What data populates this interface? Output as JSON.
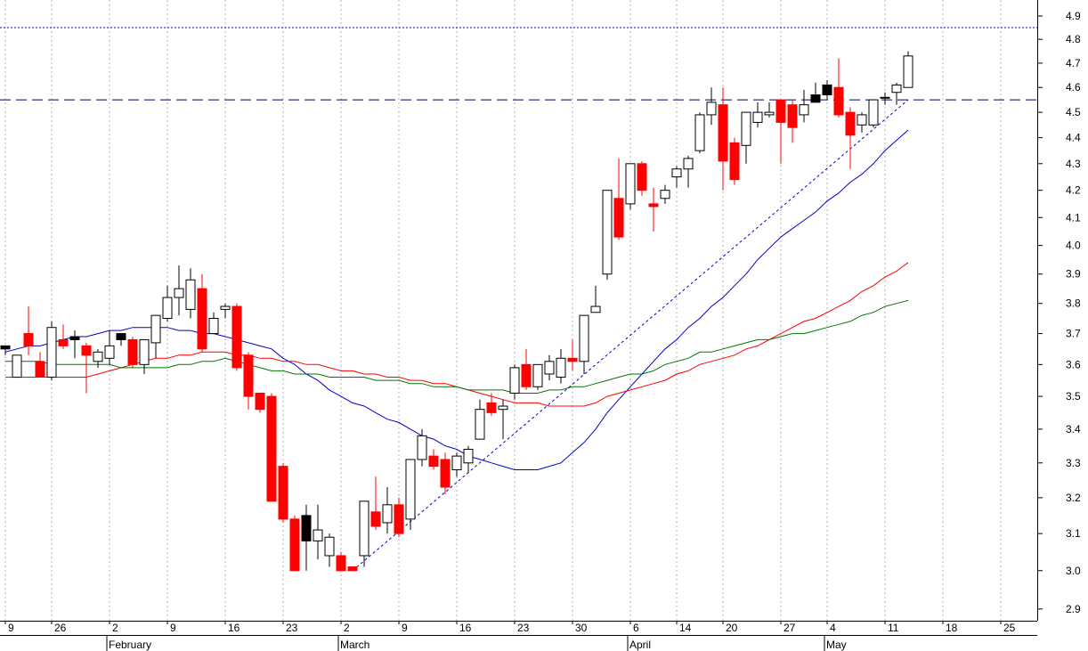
{
  "chart_data": {
    "type": "candlestick",
    "categories": [
      "9",
      null,
      null,
      null,
      "26",
      null,
      null,
      null,
      null,
      "2",
      null,
      null,
      null,
      null,
      "9",
      null,
      null,
      null,
      null,
      "16",
      null,
      null,
      null,
      null,
      "23",
      null,
      null,
      null,
      null,
      "2",
      null,
      null,
      null,
      null,
      "9",
      null,
      null,
      null,
      null,
      "16",
      null,
      null,
      null,
      null,
      "23",
      null,
      null,
      null,
      null,
      "30",
      null,
      null,
      null,
      null,
      "6",
      null,
      null,
      null,
      "14",
      null,
      null,
      null,
      "20",
      null,
      null,
      null,
      null,
      "27",
      null,
      null,
      null,
      "4",
      null,
      null,
      null,
      null,
      "11",
      null,
      null,
      null,
      null,
      "18",
      null,
      null,
      null,
      null,
      "25"
    ],
    "month_labels": [
      {
        "index": 9,
        "label": "February"
      },
      {
        "index": 29,
        "label": "March"
      },
      {
        "index": 54,
        "label": "April"
      },
      {
        "index": 71,
        "label": "May"
      }
    ],
    "open": [
      3.66,
      3.56,
      3.7,
      3.61,
      3.56,
      3.68,
      3.69,
      3.66,
      3.61,
      3.62,
      3.7,
      3.68,
      3.6,
      3.67,
      3.75,
      3.82,
      3.78,
      3.85,
      3.7,
      3.78,
      3.79,
      3.63,
      3.51,
      3.5,
      3.29,
      3.14,
      3.15,
      3.08,
      3.04,
      3.04,
      3.01,
      3.04,
      3.16,
      3.13,
      3.18,
      3.14,
      3.31,
      3.32,
      3.31,
      3.28,
      3.3,
      3.37,
      3.48,
      3.46,
      3.51,
      3.6,
      3.53,
      3.57,
      3.56,
      3.62,
      3.61,
      3.77,
      3.9,
      4.17,
      4.15,
      4.3,
      4.15,
      4.17,
      4.25,
      4.28,
      4.35,
      4.49,
      4.53,
      4.38,
      4.37,
      4.46,
      4.49,
      4.55,
      4.53,
      4.49,
      4.57,
      4.61,
      4.6,
      4.5,
      4.45,
      4.45,
      4.56,
      4.58,
      4.6,
      null,
      null,
      null,
      null,
      null,
      null,
      null,
      null
    ],
    "high": [
      3.66,
      3.63,
      3.79,
      3.64,
      3.74,
      3.73,
      3.71,
      3.67,
      3.65,
      3.71,
      3.7,
      3.69,
      3.68,
      3.76,
      3.86,
      3.93,
      3.92,
      3.9,
      3.77,
      3.8,
      3.8,
      3.64,
      3.51,
      3.51,
      3.3,
      3.15,
      3.18,
      3.18,
      3.1,
      3.05,
      3.01,
      3.19,
      3.26,
      3.23,
      3.2,
      3.31,
      3.4,
      3.34,
      3.33,
      3.33,
      3.35,
      3.49,
      3.51,
      3.49,
      3.6,
      3.65,
      3.6,
      3.63,
      3.65,
      3.68,
      3.76,
      3.86,
      4.2,
      4.32,
      4.3,
      4.31,
      4.21,
      4.22,
      4.29,
      4.33,
      4.5,
      4.6,
      4.6,
      4.4,
      4.5,
      4.54,
      4.54,
      4.55,
      4.55,
      4.59,
      4.62,
      4.63,
      4.72,
      4.52,
      4.5,
      4.55,
      4.58,
      4.62,
      4.75,
      null,
      null,
      null,
      null,
      null,
      null,
      null,
      null
    ],
    "low": [
      3.63,
      3.56,
      3.63,
      3.56,
      3.55,
      3.65,
      3.62,
      3.51,
      3.59,
      3.6,
      3.66,
      3.59,
      3.57,
      3.62,
      3.74,
      3.76,
      3.75,
      3.64,
      3.7,
      3.75,
      3.58,
      3.46,
      3.45,
      3.19,
      3.13,
      3.0,
      3.0,
      3.03,
      3.01,
      3.0,
      3.0,
      3.01,
      3.11,
      3.1,
      3.09,
      3.11,
      3.29,
      3.28,
      3.21,
      3.26,
      3.27,
      3.37,
      3.44,
      3.37,
      3.49,
      3.52,
      3.52,
      3.55,
      3.54,
      3.58,
      3.57,
      3.77,
      3.88,
      4.02,
      4.13,
      4.18,
      4.05,
      4.15,
      4.21,
      4.21,
      4.34,
      4.45,
      4.2,
      4.22,
      4.3,
      4.44,
      4.48,
      4.3,
      4.38,
      4.46,
      4.54,
      4.55,
      4.48,
      4.28,
      4.42,
      4.44,
      4.53,
      4.53,
      4.6,
      null,
      null,
      null,
      null,
      null,
      null,
      null,
      null
    ],
    "close": [
      3.65,
      3.63,
      3.66,
      3.56,
      3.72,
      3.66,
      3.68,
      3.63,
      3.64,
      3.66,
      3.68,
      3.6,
      3.68,
      3.76,
      3.82,
      3.85,
      3.88,
      3.65,
      3.75,
      3.79,
      3.59,
      3.5,
      3.46,
      3.19,
      3.14,
      3.0,
      3.08,
      3.11,
      3.09,
      3.0,
      3.0,
      3.19,
      3.12,
      3.18,
      3.1,
      3.31,
      3.38,
      3.29,
      3.23,
      3.32,
      3.34,
      3.46,
      3.45,
      3.47,
      3.59,
      3.53,
      3.6,
      3.61,
      3.62,
      3.61,
      3.76,
      3.79,
      4.2,
      4.03,
      4.3,
      4.2,
      4.14,
      4.2,
      4.28,
      4.32,
      4.49,
      4.54,
      4.31,
      4.24,
      4.5,
      4.5,
      4.5,
      4.46,
      4.44,
      4.53,
      4.54,
      4.57,
      4.49,
      4.41,
      4.49,
      4.55,
      4.56,
      4.61,
      4.73,
      null,
      null,
      null,
      null,
      null,
      null,
      null,
      null
    ],
    "candle_colors": [
      "#000000",
      "#ffffff",
      "#ff0000",
      "#ff0000",
      "#ffffff",
      "#ff0000",
      "#000000",
      "#ff0000",
      "#ffffff",
      "#ffffff",
      "#000000",
      "#ff0000",
      "#ffffff",
      "#ffffff",
      "#ffffff",
      "#ffffff",
      "#ffffff",
      "#ff0000",
      "#ffffff",
      "#ffffff",
      "#ff0000",
      "#ff0000",
      "#ff0000",
      "#ff0000",
      "#ff0000",
      "#ff0000",
      "#000000",
      "#ffffff",
      "#ffffff",
      "#ff0000",
      "#ff0000",
      "#ffffff",
      "#ff0000",
      "#ffffff",
      "#ff0000",
      "#ffffff",
      "#ffffff",
      "#ff0000",
      "#ff0000",
      "#ffffff",
      "#ffffff",
      "#ffffff",
      "#ff0000",
      "#ffffff",
      "#ffffff",
      "#ff0000",
      "#ffffff",
      "#ffffff",
      "#ffffff",
      "#ff0000",
      "#ffffff",
      "#ffffff",
      "#ffffff",
      "#ff0000",
      "#ffffff",
      "#ff0000",
      "#ff0000",
      "#ffffff",
      "#ffffff",
      "#ffffff",
      "#ffffff",
      "#ffffff",
      "#ff0000",
      "#ff0000",
      "#ffffff",
      "#ffffff",
      "#ffffff",
      "#ff0000",
      "#ff0000",
      "#ffffff",
      "#000000",
      "#000000",
      "#ff0000",
      "#ff0000",
      "#ffffff",
      "#ffffff",
      "#ffffff",
      "#ffffff",
      "#ffffff",
      null,
      null,
      null,
      null,
      null,
      null,
      null,
      null
    ],
    "lines": [
      {
        "color": "#0000cc",
        "values": [
          3.64,
          3.65,
          3.66,
          3.66,
          3.67,
          3.68,
          3.69,
          3.69,
          3.7,
          3.71,
          3.71,
          3.72,
          3.72,
          3.72,
          3.72,
          3.71,
          3.71,
          3.7,
          3.7,
          3.69,
          3.68,
          3.67,
          3.66,
          3.65,
          3.62,
          3.6,
          3.57,
          3.55,
          3.52,
          3.5,
          3.48,
          3.47,
          3.45,
          3.43,
          3.42,
          3.4,
          3.38,
          3.37,
          3.35,
          3.34,
          3.32,
          3.31,
          3.3,
          3.29,
          3.28,
          3.28,
          3.28,
          3.29,
          3.3,
          3.33,
          3.36,
          3.4,
          3.45,
          3.49,
          3.53,
          3.57,
          3.61,
          3.65,
          3.68,
          3.72,
          3.75,
          3.79,
          3.82,
          3.86,
          3.9,
          3.95,
          3.99,
          4.03,
          4.06,
          4.09,
          4.12,
          4.16,
          4.19,
          4.23,
          4.26,
          4.3,
          4.35,
          4.39,
          4.43,
          null,
          null,
          null,
          null,
          null,
          null,
          null,
          null
        ]
      },
      {
        "color": "#ff0000",
        "values": [
          3.56,
          3.56,
          3.56,
          3.56,
          3.56,
          3.56,
          3.56,
          3.56,
          3.57,
          3.58,
          3.59,
          3.6,
          3.61,
          3.62,
          3.62,
          3.63,
          3.63,
          3.64,
          3.64,
          3.64,
          3.63,
          3.63,
          3.62,
          3.62,
          3.61,
          3.61,
          3.6,
          3.6,
          3.59,
          3.58,
          3.58,
          3.57,
          3.57,
          3.56,
          3.56,
          3.55,
          3.55,
          3.54,
          3.54,
          3.53,
          3.52,
          3.51,
          3.5,
          3.49,
          3.48,
          3.48,
          3.48,
          3.47,
          3.47,
          3.47,
          3.47,
          3.48,
          3.5,
          3.51,
          3.52,
          3.53,
          3.54,
          3.55,
          3.57,
          3.58,
          3.6,
          3.61,
          3.62,
          3.63,
          3.65,
          3.66,
          3.68,
          3.7,
          3.72,
          3.74,
          3.75,
          3.77,
          3.79,
          3.81,
          3.84,
          3.86,
          3.89,
          3.91,
          3.94,
          null,
          null,
          null,
          null,
          null,
          null,
          null,
          null
        ]
      },
      {
        "color": "#007700",
        "values": [
          3.61,
          3.61,
          3.61,
          3.61,
          3.6,
          3.6,
          3.6,
          3.6,
          3.6,
          3.6,
          3.59,
          3.59,
          3.59,
          3.59,
          3.59,
          3.6,
          3.6,
          3.61,
          3.61,
          3.62,
          3.61,
          3.6,
          3.59,
          3.58,
          3.58,
          3.57,
          3.57,
          3.57,
          3.56,
          3.56,
          3.56,
          3.56,
          3.55,
          3.55,
          3.55,
          3.54,
          3.54,
          3.53,
          3.53,
          3.53,
          3.52,
          3.52,
          3.52,
          3.52,
          3.51,
          3.51,
          3.51,
          3.52,
          3.52,
          3.53,
          3.53,
          3.54,
          3.55,
          3.56,
          3.57,
          3.57,
          3.58,
          3.6,
          3.61,
          3.62,
          3.64,
          3.64,
          3.65,
          3.66,
          3.67,
          3.68,
          3.68,
          3.69,
          3.7,
          3.7,
          3.71,
          3.72,
          3.73,
          3.74,
          3.76,
          3.77,
          3.79,
          3.8,
          3.81,
          null,
          null,
          null,
          null,
          null,
          null,
          null,
          null
        ]
      }
    ],
    "hlines": [
      {
        "value": 4.85,
        "color": "#0000cc",
        "style": "dotted"
      },
      {
        "value": 4.55,
        "color": "#000066",
        "style": "dashed"
      }
    ],
    "trendline": {
      "x": [
        30,
        78
      ],
      "values": [
        3.0,
        4.55
      ],
      "color": "#0000cc"
    },
    "log_y": true,
    "ylim": [
      2.87,
      4.97
    ],
    "yticks": [
      2.9,
      {
        "value": 3,
        "label": "3.0"
      },
      3.1,
      3.2,
      3.3,
      3.4,
      3.5,
      3.6,
      3.7,
      3.8,
      3.9,
      {
        "value": 4,
        "label": "4.0"
      },
      4.1,
      4.2,
      4.3,
      4.4,
      4.5,
      4.6,
      4.7,
      4.8,
      4.9
    ],
    "grid": true
  }
}
